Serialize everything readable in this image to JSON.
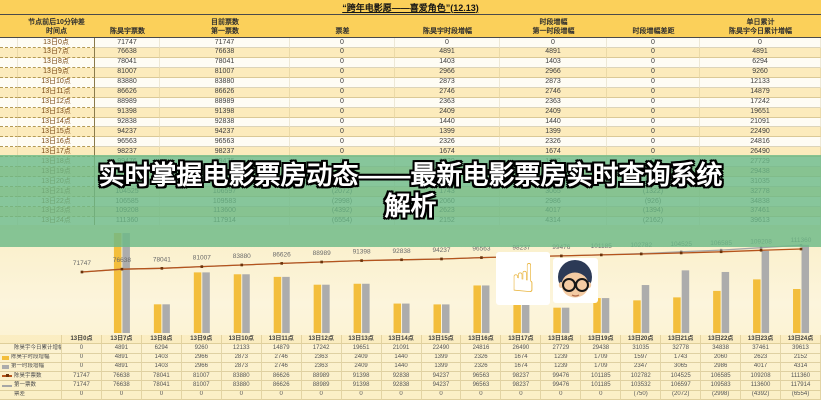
{
  "title": "“跨年电影愿——喜爱角色”(12.13)",
  "banner": {
    "line1": "实时掌握电影票房动态——最新电影票房实时查询系统",
    "line2": "解析"
  },
  "table": {
    "columns": [
      {
        "top": "节点前后10分钟差",
        "bottom": "时间点"
      },
      {
        "top": "",
        "bottom": "陈昊宇票数"
      },
      {
        "top": "目前票数",
        "bottom": "第一票数"
      },
      {
        "top": "",
        "bottom": "票差"
      },
      {
        "top": "",
        "bottom": "陈昊宇时段增幅"
      },
      {
        "top": "时段增幅",
        "bottom": "第一时段增幅"
      },
      {
        "top": "",
        "bottom": "时段增幅差距"
      },
      {
        "top": "单日累计",
        "bottom": "陈昊宇今日累计增幅"
      }
    ],
    "rows": [
      [
        "13日0点",
        "71747",
        "71747",
        "0",
        "0",
        "0",
        "0",
        "0"
      ],
      [
        "13日7点",
        "76638",
        "76638",
        "0",
        "4891",
        "4891",
        "0",
        "4891"
      ],
      [
        "13日8点",
        "78041",
        "78041",
        "0",
        "1403",
        "1403",
        "0",
        "6294"
      ],
      [
        "13日9点",
        "81007",
        "81007",
        "0",
        "2966",
        "2966",
        "0",
        "9260"
      ],
      [
        "13日10点",
        "83880",
        "83880",
        "0",
        "2873",
        "2873",
        "0",
        "12133"
      ],
      [
        "13日11点",
        "86626",
        "86626",
        "0",
        "2746",
        "2746",
        "0",
        "14879"
      ],
      [
        "13日12点",
        "88989",
        "88989",
        "0",
        "2363",
        "2363",
        "0",
        "17242"
      ],
      [
        "13日13点",
        "91398",
        "91398",
        "0",
        "2409",
        "2409",
        "0",
        "19651"
      ],
      [
        "13日14点",
        "92838",
        "92838",
        "0",
        "1440",
        "1440",
        "0",
        "21091"
      ],
      [
        "13日15点",
        "94237",
        "94237",
        "0",
        "1399",
        "1399",
        "0",
        "22490"
      ],
      [
        "13日16点",
        "96563",
        "96563",
        "0",
        "2326",
        "2326",
        "0",
        "24816"
      ],
      [
        "13日17点",
        "98237",
        "98237",
        "0",
        "1674",
        "1674",
        "0",
        "26490"
      ],
      [
        "13日18点",
        "99476",
        "99476",
        "0",
        "1239",
        "1239",
        "0",
        "27729"
      ],
      [
        "13日19点",
        "101185",
        "101185",
        "0",
        "1709",
        "1709",
        "0",
        "29438"
      ],
      [
        "13日20点",
        "102782",
        "103532",
        "(750)",
        "1597",
        "2347",
        "(750)",
        "31035"
      ],
      [
        "13日21点",
        "104525",
        "106597",
        "(2072)",
        "1743",
        "3065",
        "(1322)",
        "32778"
      ],
      [
        "13日22点",
        "106585",
        "109583",
        "(2998)",
        "2060",
        "2986",
        "(926)",
        "34838"
      ],
      [
        "13日23点",
        "109208",
        "113600",
        "(4392)",
        "2623",
        "4017",
        "(1394)",
        "37461"
      ],
      [
        "13日24点",
        "111360",
        "117914",
        "(6554)",
        "2152",
        "4314",
        "(2162)",
        "39613"
      ]
    ],
    "highlight_row": "13日19点"
  },
  "chart_data": {
    "type": "bar",
    "subtype": "combo-bar-line-with-data-table",
    "categories": [
      "13日0点",
      "13日7点",
      "13日8点",
      "13日9点",
      "13日10点",
      "13日11点",
      "13日12点",
      "13日13点",
      "13日14点",
      "13日15点",
      "13日16点",
      "13日17点",
      "13日18点",
      "13日19点",
      "13日20点",
      "13日21点",
      "13日22点",
      "13日23点",
      "13日24点"
    ],
    "series": [
      {
        "name": "陈昊宇今日累计增幅",
        "render": "table-only",
        "marker": "none",
        "color": "",
        "values": [
          0,
          4891,
          6294,
          9260,
          12133,
          14879,
          17242,
          19651,
          21091,
          22490,
          24816,
          26490,
          27729,
          29438,
          31035,
          32778,
          34838,
          37461,
          39613
        ]
      },
      {
        "name": "陈昊宇时段增幅",
        "render": "bar",
        "marker": "square",
        "color": "#F3BE3C",
        "values": [
          0,
          4891,
          1403,
          2966,
          2873,
          2746,
          2363,
          2409,
          1440,
          1399,
          2326,
          1674,
          1239,
          1709,
          1597,
          1743,
          2060,
          2623,
          2152
        ]
      },
      {
        "name": "第一时段增幅",
        "render": "bar",
        "marker": "square",
        "color": "#ACACAC",
        "values": [
          0,
          4891,
          1403,
          2966,
          2873,
          2746,
          2363,
          2409,
          1440,
          1399,
          2326,
          1674,
          1239,
          1709,
          2347,
          3065,
          2986,
          4017,
          4314
        ]
      },
      {
        "name": "陈昊宇票数",
        "render": "line",
        "marker": "line-dot",
        "color": "#B5541C",
        "values": [
          71747,
          76638,
          78041,
          81007,
          83880,
          86626,
          88989,
          91398,
          92838,
          94237,
          96563,
          98237,
          99476,
          101185,
          102782,
          104525,
          106585,
          109208,
          111360
        ],
        "labels_shown": true
      },
      {
        "name": "第一票数",
        "render": "line",
        "marker": "line",
        "color": "#A6A6A6",
        "values": [
          71747,
          76638,
          78041,
          81007,
          83880,
          86626,
          88989,
          91398,
          92838,
          94237,
          96563,
          98237,
          99476,
          101185,
          103532,
          106597,
          109583,
          113600,
          117914
        ]
      },
      {
        "name": "票差",
        "render": "table-only",
        "marker": "none",
        "color": "",
        "values": [
          "0",
          "0",
          "0",
          "0",
          "0",
          "0",
          "0",
          "0",
          "0",
          "0",
          "0",
          "0",
          "0",
          "0",
          "(750)",
          "(2072)",
          "(2998)",
          "(4392)",
          "(6554)"
        ]
      }
    ],
    "legend_position": "left-of-data-table",
    "gridlines": false,
    "bar_axis_max": 5000,
    "line_axis_range": [
      60000,
      130000
    ]
  },
  "stickers": {
    "finger_glyph": "☝",
    "avatar_description": "boy-with-glasses-face"
  },
  "colors": {
    "header_yellow": "#FBD05A",
    "row_alt_yellow": "#FCEBBC",
    "banner_green": "#6CB988",
    "bar_yellow": "#F3BE3C",
    "bar_gray": "#ACACAC",
    "line_orange": "#B5541C",
    "line_gray": "#A6A6A6"
  }
}
